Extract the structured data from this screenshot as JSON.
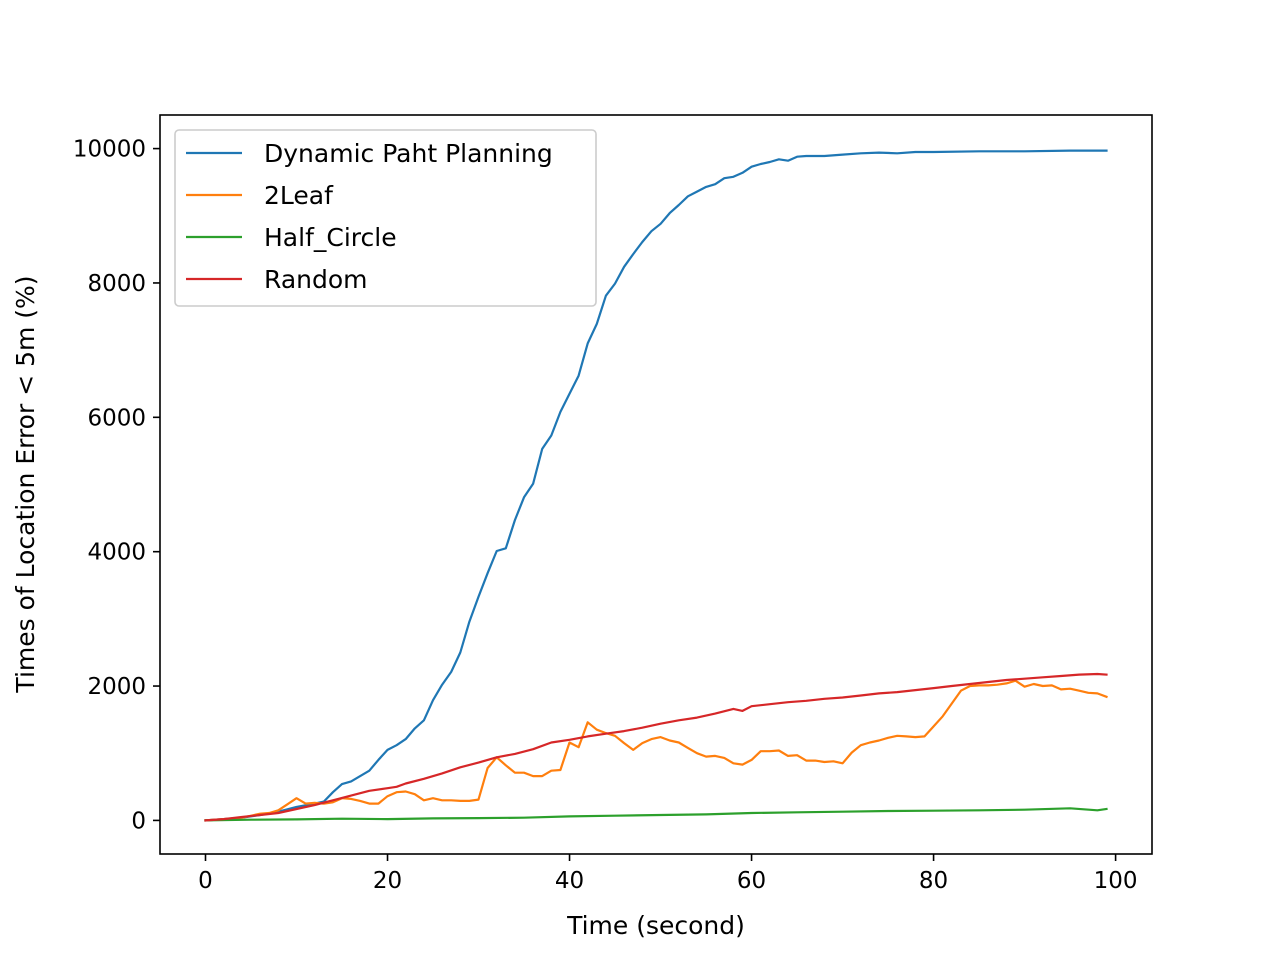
{
  "chart_data": {
    "type": "line",
    "xlabel": "Time (second)",
    "ylabel": "Times of Location Error < 5m (%)",
    "xlim": [
      -5,
      104
    ],
    "ylim": [
      -500,
      10500
    ],
    "xticks": [
      0,
      20,
      40,
      60,
      80,
      100
    ],
    "yticks": [
      0,
      2000,
      4000,
      6000,
      8000,
      10000
    ],
    "grid": false,
    "legend_position": "top-left",
    "series": [
      {
        "name": "Dynamic Paht Planning",
        "color": "#1f77b4",
        "x": [
          0,
          2,
          4,
          6,
          8,
          10,
          12,
          13,
          14,
          15,
          16,
          17,
          18,
          19,
          20,
          21,
          22,
          23,
          24,
          25,
          26,
          27,
          28,
          29,
          30,
          31,
          32,
          33,
          34,
          35,
          36,
          37,
          38,
          39,
          40,
          41,
          42,
          43,
          44,
          45,
          46,
          47,
          48,
          49,
          50,
          51,
          52,
          53,
          54,
          55,
          56,
          57,
          58,
          59,
          60,
          61,
          62,
          63,
          64,
          65,
          66,
          68,
          70,
          72,
          74,
          76,
          78,
          80,
          85,
          90,
          95,
          99
        ],
        "y": [
          0,
          20,
          40,
          80,
          130,
          200,
          250,
          280,
          420,
          540,
          580,
          660,
          740,
          900,
          1050,
          1120,
          1210,
          1370,
          1490,
          1790,
          2020,
          2210,
          2500,
          2960,
          3330,
          3680,
          4010,
          4050,
          4470,
          4810,
          5010,
          5530,
          5730,
          6080,
          6350,
          6620,
          7100,
          7390,
          7810,
          7990,
          8240,
          8430,
          8610,
          8770,
          8880,
          9040,
          9160,
          9290,
          9360,
          9430,
          9470,
          9560,
          9580,
          9640,
          9730,
          9770,
          9800,
          9840,
          9820,
          9880,
          9890,
          9890,
          9910,
          9930,
          9940,
          9930,
          9950,
          9950,
          9960,
          9960,
          9970,
          9970
        ]
      },
      {
        "name": "2Leaf",
        "color": "#ff7f0e",
        "x": [
          0,
          2,
          4,
          6,
          7,
          8,
          9,
          10,
          11,
          12,
          13,
          14,
          15,
          16,
          17,
          18,
          19,
          20,
          21,
          22,
          23,
          24,
          25,
          26,
          27,
          28,
          29,
          30,
          31,
          32,
          33,
          34,
          35,
          36,
          37,
          38,
          39,
          40,
          41,
          42,
          43,
          44,
          45,
          46,
          47,
          48,
          49,
          50,
          51,
          52,
          53,
          54,
          55,
          56,
          57,
          58,
          59,
          60,
          61,
          62,
          63,
          64,
          65,
          66,
          67,
          68,
          69,
          70,
          71,
          72,
          73,
          74,
          75,
          76,
          77,
          78,
          79,
          80,
          81,
          82,
          83,
          84,
          85,
          86,
          87,
          88,
          89,
          90,
          91,
          92,
          93,
          94,
          95,
          96,
          97,
          98,
          99
        ],
        "y": [
          0,
          20,
          40,
          100,
          110,
          150,
          240,
          330,
          250,
          260,
          250,
          270,
          330,
          320,
          290,
          250,
          250,
          360,
          420,
          430,
          390,
          300,
          330,
          300,
          300,
          290,
          290,
          310,
          780,
          940,
          820,
          710,
          710,
          660,
          660,
          740,
          750,
          1160,
          1090,
          1460,
          1350,
          1300,
          1260,
          1150,
          1050,
          1150,
          1210,
          1240,
          1190,
          1160,
          1080,
          1000,
          950,
          960,
          930,
          850,
          830,
          900,
          1030,
          1030,
          1040,
          960,
          970,
          890,
          890,
          870,
          880,
          850,
          1010,
          1120,
          1160,
          1190,
          1230,
          1260,
          1250,
          1240,
          1250,
          1400,
          1550,
          1740,
          1930,
          2000,
          2010,
          2010,
          2020,
          2040,
          2080,
          1990,
          2030,
          2000,
          2010,
          1950,
          1960,
          1930,
          1900,
          1890,
          1840
        ]
      },
      {
        "name": "Half_Circle",
        "color": "#2ca02c",
        "x": [
          0,
          5,
          10,
          15,
          20,
          25,
          30,
          35,
          40,
          45,
          50,
          55,
          60,
          65,
          70,
          75,
          80,
          85,
          90,
          95,
          98,
          99
        ],
        "y": [
          0,
          10,
          15,
          25,
          20,
          30,
          35,
          40,
          60,
          70,
          80,
          90,
          110,
          120,
          130,
          140,
          145,
          150,
          160,
          180,
          150,
          170
        ]
      },
      {
        "name": "Random",
        "color": "#d62728",
        "x": [
          0,
          2,
          4,
          6,
          8,
          10,
          12,
          14,
          16,
          18,
          20,
          21,
          22,
          24,
          26,
          28,
          30,
          32,
          34,
          36,
          38,
          40,
          42,
          44,
          46,
          48,
          50,
          52,
          54,
          56,
          58,
          59,
          60,
          62,
          64,
          66,
          68,
          70,
          72,
          74,
          76,
          78,
          80,
          82,
          84,
          86,
          88,
          90,
          92,
          94,
          96,
          98,
          99
        ],
        "y": [
          0,
          20,
          50,
          80,
          110,
          170,
          230,
          300,
          370,
          440,
          480,
          500,
          550,
          620,
          700,
          790,
          860,
          940,
          990,
          1060,
          1160,
          1200,
          1250,
          1290,
          1330,
          1380,
          1440,
          1490,
          1530,
          1590,
          1660,
          1630,
          1700,
          1730,
          1760,
          1780,
          1810,
          1830,
          1860,
          1890,
          1910,
          1940,
          1970,
          2000,
          2030,
          2060,
          2090,
          2110,
          2130,
          2150,
          2170,
          2180,
          2170
        ]
      }
    ]
  }
}
